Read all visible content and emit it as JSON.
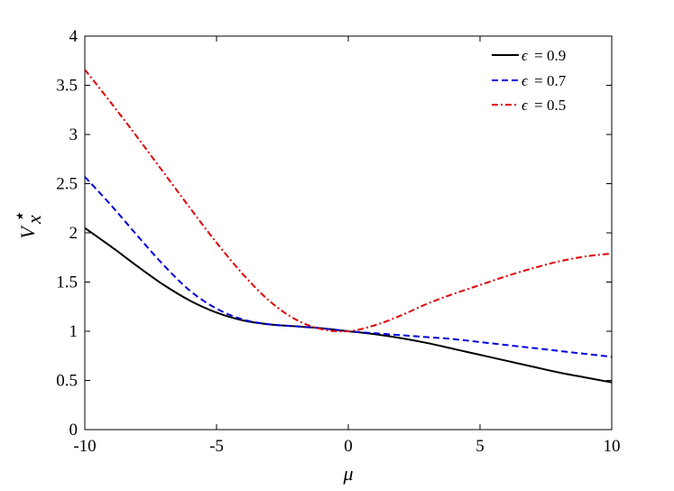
{
  "chart_data": {
    "type": "line",
    "xlabel": "μ",
    "ylabel_main": "V",
    "ylabel_sub": "x",
    "ylabel_sup": "⋆",
    "xlim": [
      -10,
      10
    ],
    "ylim": [
      0,
      4
    ],
    "xticks": [
      -10,
      -5,
      0,
      5,
      10
    ],
    "xtick_labels": [
      "-10",
      "-5",
      "0",
      "5",
      "10"
    ],
    "yticks": [
      0,
      0.5,
      1,
      1.5,
      2,
      2.5,
      3,
      3.5,
      4
    ],
    "ytick_labels": [
      "0",
      "0.5",
      "1",
      "1.5",
      "2",
      "2.5",
      "3",
      "3.5",
      "4"
    ],
    "grid": false,
    "legend_position": "top-right",
    "series": [
      {
        "name": "ϵ = 0.9",
        "legend_symbol": "ϵ",
        "legend_value": "= 0.9",
        "color": "#000000",
        "style": "solid",
        "x": [
          -10,
          -9,
          -8,
          -7,
          -6,
          -5,
          -4,
          -3,
          -2,
          -1,
          0,
          1,
          2,
          3,
          4,
          5,
          6,
          7,
          8,
          9,
          10
        ],
        "y": [
          2.05,
          1.86,
          1.66,
          1.47,
          1.31,
          1.19,
          1.11,
          1.07,
          1.05,
          1.03,
          1.0,
          0.97,
          0.93,
          0.88,
          0.82,
          0.76,
          0.7,
          0.64,
          0.58,
          0.53,
          0.48
        ]
      },
      {
        "name": "ϵ = 0.7",
        "legend_symbol": "ϵ",
        "legend_value": "= 0.7",
        "color": "#0000dd",
        "style": "dashed",
        "x": [
          -10,
          -9,
          -8,
          -7,
          -6,
          -5,
          -4,
          -3,
          -2,
          -1,
          0,
          1,
          2,
          3,
          4,
          5,
          6,
          7,
          8,
          9,
          10
        ],
        "y": [
          2.57,
          2.28,
          1.97,
          1.67,
          1.41,
          1.23,
          1.12,
          1.07,
          1.05,
          1.03,
          1.0,
          0.98,
          0.96,
          0.94,
          0.92,
          0.89,
          0.86,
          0.83,
          0.8,
          0.77,
          0.74
        ]
      },
      {
        "name": "ϵ = 0.5",
        "legend_symbol": "ϵ",
        "legend_value": "= 0.5",
        "color": "#dd0000",
        "style": "dashdot",
        "x": [
          -10,
          -9,
          -8,
          -7,
          -6,
          -5,
          -4,
          -3,
          -2,
          -1,
          0,
          1,
          2,
          3,
          4,
          5,
          6,
          7,
          8,
          9,
          10
        ],
        "y": [
          3.66,
          3.32,
          2.97,
          2.61,
          2.25,
          1.9,
          1.58,
          1.31,
          1.12,
          1.02,
          1.0,
          1.06,
          1.16,
          1.28,
          1.38,
          1.47,
          1.56,
          1.64,
          1.71,
          1.76,
          1.79
        ]
      }
    ]
  }
}
